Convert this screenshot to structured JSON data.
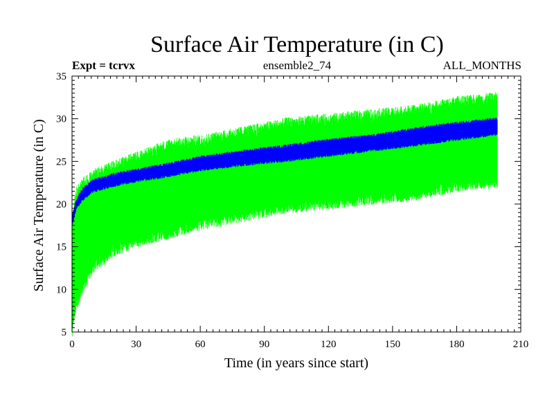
{
  "chart_data": {
    "type": "area",
    "title": "Surface Air Temperature (in C)",
    "subtitle_left": "Expt = tcrvx",
    "subtitle_center": "ensemble2_74",
    "subtitle_right": "ALL_MONTHS",
    "xlabel": "Time (in years since start)",
    "ylabel": "Surface Air Temperature (in C)",
    "xlim": [
      0,
      210
    ],
    "ylim": [
      5,
      35
    ],
    "xticks": [
      0,
      30,
      60,
      90,
      120,
      150,
      180,
      210
    ],
    "yticks": [
      5,
      10,
      15,
      20,
      25,
      30,
      35
    ],
    "x_range_data": [
      0,
      199
    ],
    "colors": {
      "spread": "#00ff00",
      "mean": "#0000ff",
      "axis": "#000000"
    },
    "series": [
      {
        "name": "ensemble spread (green)",
        "x": [
          0,
          2,
          5,
          10,
          20,
          30,
          45,
          60,
          80,
          100,
          120,
          140,
          160,
          180,
          199
        ],
        "upper": [
          18,
          21.5,
          22.5,
          23.5,
          24.5,
          25.5,
          27,
          27.5,
          28.5,
          29.5,
          30,
          30.5,
          31,
          32,
          32.5
        ],
        "lower": [
          5,
          8,
          10,
          12.5,
          14.5,
          15.5,
          16.5,
          17.5,
          18.5,
          19.5,
          20,
          20.5,
          21,
          22,
          22.5
        ]
      },
      {
        "name": "ensemble mean (blue)",
        "x": [
          0,
          2,
          5,
          10,
          20,
          30,
          45,
          60,
          80,
          100,
          120,
          140,
          160,
          180,
          199
        ],
        "upper": [
          18.5,
          20.5,
          21.8,
          22.8,
          23.5,
          24,
          24.7,
          25.5,
          26.2,
          26.8,
          27.5,
          28,
          28.8,
          29.5,
          30
        ],
        "lower": [
          17.5,
          19.5,
          20.5,
          21.5,
          22.2,
          22.7,
          23.3,
          24,
          24.6,
          25.1,
          25.7,
          26.3,
          26.9,
          27.6,
          28.2
        ]
      }
    ]
  }
}
